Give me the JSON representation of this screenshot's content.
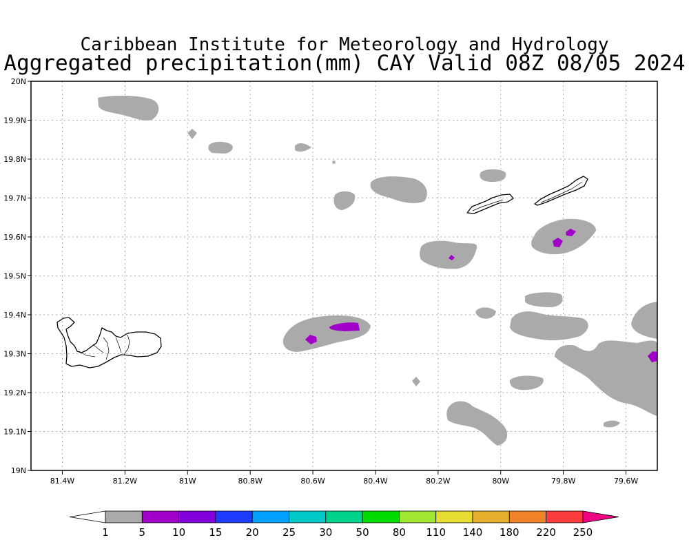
{
  "title": "Caribbean Institute for Meteorology and Hydrology",
  "subtitle": "Aggregated precipitation(mm) CAY Valid 08Z 08/05 2024",
  "map": {
    "lon_range": [
      -81.5,
      -79.5
    ],
    "lat_range": [
      19.0,
      20.0
    ],
    "grid": true,
    "x_ticks": [
      {
        "value": -81.4,
        "label": "81.4W"
      },
      {
        "value": -81.2,
        "label": "81.2W"
      },
      {
        "value": -81.0,
        "label": "81W"
      },
      {
        "value": -80.8,
        "label": "80.8W"
      },
      {
        "value": -80.6,
        "label": "80.6W"
      },
      {
        "value": -80.4,
        "label": "80.4W"
      },
      {
        "value": -80.2,
        "label": "80.2W"
      },
      {
        "value": -80.0,
        "label": "80W"
      },
      {
        "value": -79.8,
        "label": "79.8W"
      },
      {
        "value": -79.6,
        "label": "79.6W"
      }
    ],
    "y_ticks": [
      {
        "value": 20.0,
        "label": "20N"
      },
      {
        "value": 19.9,
        "label": "19.9N"
      },
      {
        "value": 19.8,
        "label": "19.8N"
      },
      {
        "value": 19.7,
        "label": "19.7N"
      },
      {
        "value": 19.6,
        "label": "19.6N"
      },
      {
        "value": 19.5,
        "label": "19.5N"
      },
      {
        "value": 19.4,
        "label": "19.4N"
      },
      {
        "value": 19.3,
        "label": "19.3N"
      },
      {
        "value": 19.2,
        "label": "19.2N"
      },
      {
        "value": 19.1,
        "label": "19.1N"
      },
      {
        "value": 19.0,
        "label": "19N"
      }
    ]
  },
  "colorbar": {
    "labels": [
      "1",
      "5",
      "10",
      "15",
      "20",
      "25",
      "30",
      "50",
      "80",
      "110",
      "140",
      "180",
      "220",
      "250"
    ],
    "colors": [
      "#aaaaaa",
      "#a000c8",
      "#8200dc",
      "#1e3cff",
      "#00a0ff",
      "#00c8c8",
      "#00d28c",
      "#00dc00",
      "#a0e632",
      "#e6dc32",
      "#e6af2d",
      "#f08228",
      "#fa3c3c",
      "#f00082"
    ],
    "left_end_color": "#ffffff"
  },
  "colors": {
    "rain_light": "#aaaaaa",
    "rain_5_10": "#a000c8",
    "coast": "#000000"
  },
  "chart_data": {
    "type": "heatmap",
    "variable": "Aggregated precipitation",
    "units": "mm",
    "valid": "08Z 08/05 2024",
    "region": "CAY",
    "precip_areas": [
      {
        "lon": -81.19,
        "lat": 19.95,
        "class": "1-5"
      },
      {
        "lon": -80.89,
        "lat": 19.83,
        "class": "1-5"
      },
      {
        "lon": -80.36,
        "lat": 19.73,
        "class": "1-5"
      },
      {
        "lon": -80.49,
        "lat": 19.69,
        "class": "1-5"
      },
      {
        "lon": -80.04,
        "lat": 19.77,
        "class": "1-5"
      },
      {
        "lon": -80.17,
        "lat": 19.56,
        "class": "1-5"
      },
      {
        "lon": -80.15,
        "lat": 19.55,
        "class": "5-10"
      },
      {
        "lon": -79.79,
        "lat": 19.6,
        "class": "1-5"
      },
      {
        "lon": -79.82,
        "lat": 19.59,
        "class": "5-10"
      },
      {
        "lon": -79.78,
        "lat": 19.62,
        "class": "5-10"
      },
      {
        "lon": -80.55,
        "lat": 19.35,
        "class": "1-5"
      },
      {
        "lon": -80.61,
        "lat": 19.34,
        "class": "5-10"
      },
      {
        "lon": -80.5,
        "lat": 19.37,
        "class": "5-10"
      },
      {
        "lon": -79.86,
        "lat": 19.44,
        "class": "1-5"
      },
      {
        "lon": -79.83,
        "lat": 19.38,
        "class": "1-5"
      },
      {
        "lon": -79.54,
        "lat": 19.38,
        "class": "1-5"
      },
      {
        "lon": -79.66,
        "lat": 19.27,
        "class": "1-5"
      },
      {
        "lon": -79.52,
        "lat": 19.29,
        "class": "5-10"
      },
      {
        "lon": -79.9,
        "lat": 19.23,
        "class": "1-5"
      },
      {
        "lon": -80.07,
        "lat": 19.12,
        "class": "1-5"
      },
      {
        "lon": -80.27,
        "lat": 19.23,
        "class": "1-5"
      },
      {
        "lon": -79.63,
        "lat": 19.12,
        "class": "1-5"
      }
    ]
  }
}
